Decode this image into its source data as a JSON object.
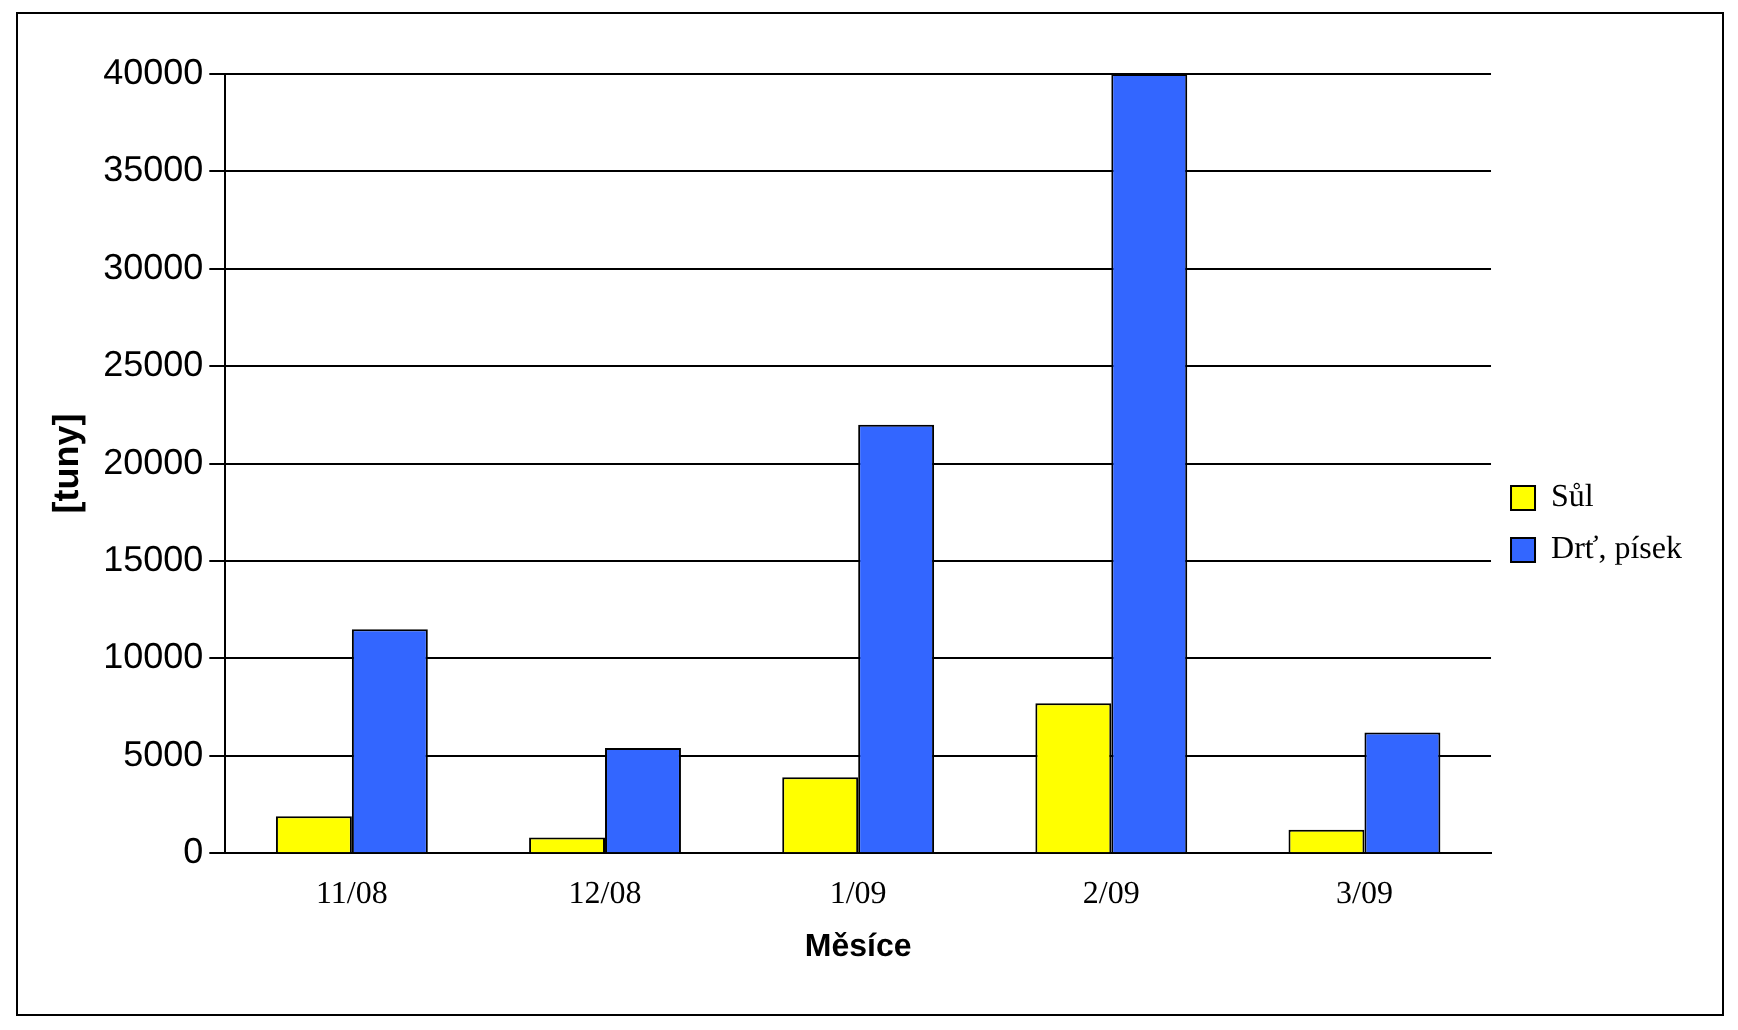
{
  "chart_data": {
    "type": "bar",
    "xlabel": "Měsíce",
    "ylabel": "[tuny]",
    "categories": [
      "11/08",
      "12/08",
      "1/09",
      "2/09",
      "3/09"
    ],
    "series": [
      {
        "name": "Sůl",
        "color": "#ffff00",
        "values": [
          1900,
          800,
          3900,
          7700,
          1200
        ]
      },
      {
        "name": "Drť, písek",
        "color": "#3366ff",
        "values": [
          11500,
          5400,
          22000,
          40000,
          6200
        ]
      }
    ],
    "ylim": [
      0,
      40000
    ],
    "yticks": [
      0,
      5000,
      10000,
      15000,
      20000,
      25000,
      30000,
      35000,
      40000
    ],
    "grid": "y",
    "legend": "right"
  }
}
